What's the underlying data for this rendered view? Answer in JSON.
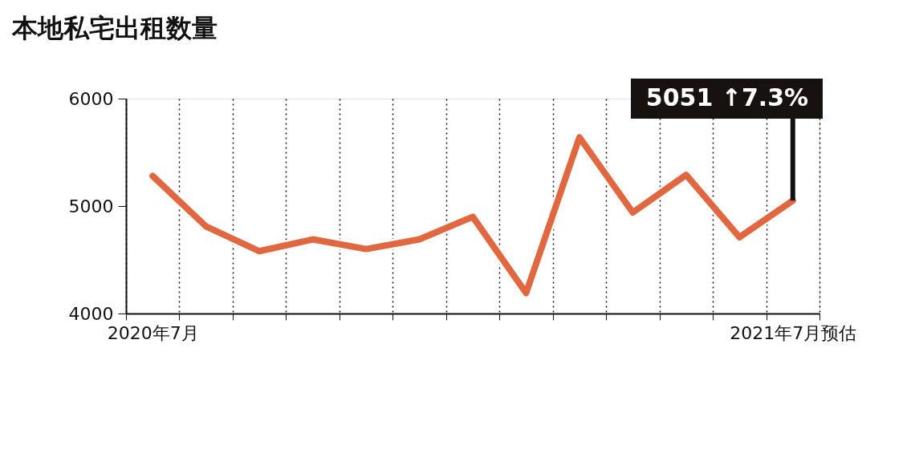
{
  "chart_data": {
    "type": "line",
    "title": "本地私宅出租数量",
    "categories": [
      "2020年7月",
      null,
      null,
      null,
      null,
      null,
      null,
      null,
      null,
      null,
      null,
      null,
      "2021年7月预估"
    ],
    "series": [
      {
        "color": "#e0673f",
        "values": [
          5280,
          4810,
          4580,
          4690,
          4600,
          4690,
          4900,
          4190,
          5640,
          4940,
          5290,
          4710,
          5051
        ]
      }
    ],
    "ylim": [
      4000,
      6000
    ],
    "yticks": [
      4000,
      5000,
      6000
    ],
    "grid": "x",
    "line_style": "solid",
    "marker": "none",
    "annotations": [
      {
        "text": "5051 ↑7.3%",
        "x": "2021年7月预估",
        "y": 5051
      }
    ]
  }
}
